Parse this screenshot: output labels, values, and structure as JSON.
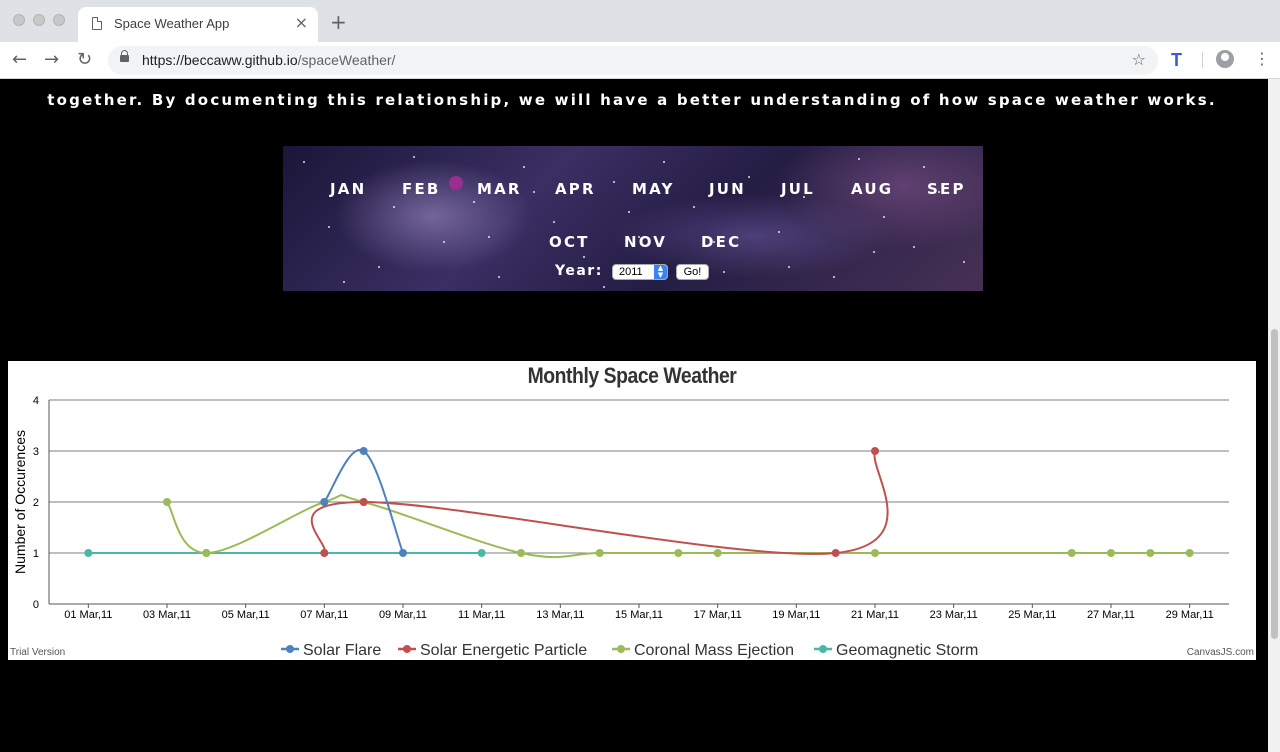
{
  "browser": {
    "tab_title": "Space Weather App",
    "tab_close": "×",
    "new_tab": "+",
    "url_host": "https://beccaww.github.io",
    "url_path": "/spaceWeather/"
  },
  "page": {
    "intro_text": "together. By documenting this relationship, we will have a better understanding of how space weather works.",
    "months": [
      "JAN",
      "FEB",
      "MAR",
      "APR",
      "MAY",
      "JUN",
      "JUL",
      "AUG",
      "SEP",
      "OCT",
      "NOV",
      "DEC"
    ],
    "year_label": "Year:",
    "year_value": "2011",
    "go_label": "Go!"
  },
  "chart": {
    "trial_text": "Trial Version",
    "credit_text": "CanvasJS.com"
  },
  "colors": {
    "solar_flare": "#4f81bc",
    "solar_energetic_particle": "#c0504e",
    "coronal_mass_ejection": "#9bbb58",
    "geomagnetic_storm": "#4bb8a6",
    "selected_month_dot": "#9c2f8d"
  },
  "chart_data": {
    "type": "line",
    "title": "Monthly Space Weather",
    "xlabel": "",
    "ylabel": "Number of Occurences",
    "ylim": [
      0,
      4
    ],
    "yticks": [
      "0",
      "1",
      "2",
      "3",
      "4"
    ],
    "xlim": [
      "2011-03-00",
      "2011-03-30"
    ],
    "xticks": [
      "01 Mar,11",
      "03 Mar,11",
      "05 Mar,11",
      "07 Mar,11",
      "09 Mar,11",
      "11 Mar,11",
      "13 Mar,11",
      "15 Mar,11",
      "17 Mar,11",
      "19 Mar,11",
      "21 Mar,11",
      "23 Mar,11",
      "25 Mar,11",
      "27 Mar,11",
      "29 Mar,11"
    ],
    "grid": true,
    "legend_position": "bottom",
    "series": [
      {
        "name": "Solar Flare",
        "color": "#4f81bc",
        "points": [
          [
            "2011-03-07",
            2
          ],
          [
            "2011-03-08",
            3
          ],
          [
            "2011-03-09",
            1
          ]
        ]
      },
      {
        "name": "Solar Energetic Particle",
        "color": "#c0504e",
        "points": [
          [
            "2011-03-07",
            1
          ],
          [
            "2011-03-08",
            2
          ],
          [
            "2011-03-20",
            1
          ],
          [
            "2011-03-21",
            3
          ]
        ]
      },
      {
        "name": "Coronal Mass Ejection",
        "color": "#9bbb58",
        "points": [
          [
            "2011-03-03",
            2
          ],
          [
            "2011-03-04",
            1
          ],
          [
            "2011-03-07",
            2
          ],
          [
            "2011-03-08",
            2
          ],
          [
            "2011-03-12",
            1
          ],
          [
            "2011-03-14",
            1
          ],
          [
            "2011-03-16",
            1
          ],
          [
            "2011-03-17",
            1
          ],
          [
            "2011-03-21",
            1
          ],
          [
            "2011-03-26",
            1
          ],
          [
            "2011-03-27",
            1
          ],
          [
            "2011-03-28",
            1
          ],
          [
            "2011-03-29",
            1
          ]
        ]
      },
      {
        "name": "Geomagnetic Storm",
        "color": "#4bb8a6",
        "points": [
          [
            "2011-03-01",
            1
          ],
          [
            "2011-03-04",
            1
          ],
          [
            "2011-03-11",
            1
          ]
        ]
      }
    ]
  }
}
